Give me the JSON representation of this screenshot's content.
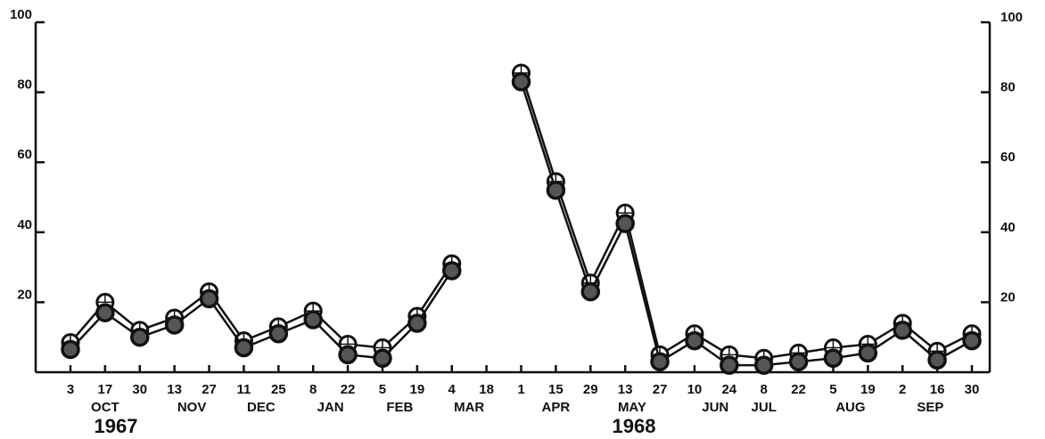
{
  "chart_data": {
    "type": "line",
    "categories": [
      "3",
      "17",
      "30",
      "13",
      "27",
      "11",
      "25",
      "8",
      "22",
      "5",
      "19",
      "4",
      "18",
      "1",
      "15",
      "29",
      "13",
      "27",
      "10",
      "24",
      "8",
      "22",
      "5",
      "19",
      "2",
      "16",
      "30"
    ],
    "months": [
      "OCT",
      "NOV",
      "DEC",
      "JAN",
      "FEB",
      "MAR",
      "APR",
      "MAY",
      "JUN",
      "JUL",
      "AUG",
      "SEP"
    ],
    "years": [
      "1967",
      "1968"
    ],
    "series": [
      {
        "color": "#111111",
        "marker": "open",
        "values": [
          8.5,
          20,
          12,
          15.5,
          23,
          9,
          13,
          17.5,
          8,
          7,
          16,
          31,
          null,
          85.5,
          54.5,
          25.5,
          45.5,
          5,
          11,
          5,
          4,
          5.5,
          7,
          8,
          14,
          6,
          11
        ]
      },
      {
        "color": "#111111",
        "marker": "filled",
        "values": [
          6.5,
          17,
          10,
          13.5,
          21,
          7,
          11,
          15,
          5,
          4,
          14,
          29,
          null,
          83,
          52,
          23,
          42.5,
          3,
          9,
          2,
          2,
          3,
          4,
          5.5,
          12,
          3.5,
          9
        ]
      }
    ],
    "ylim": [
      0,
      100
    ],
    "yticks": [
      20,
      40,
      60,
      80,
      100
    ],
    "y2lim": [
      0,
      100
    ],
    "y2ticks": [
      20,
      40,
      60,
      80,
      100
    ]
  }
}
